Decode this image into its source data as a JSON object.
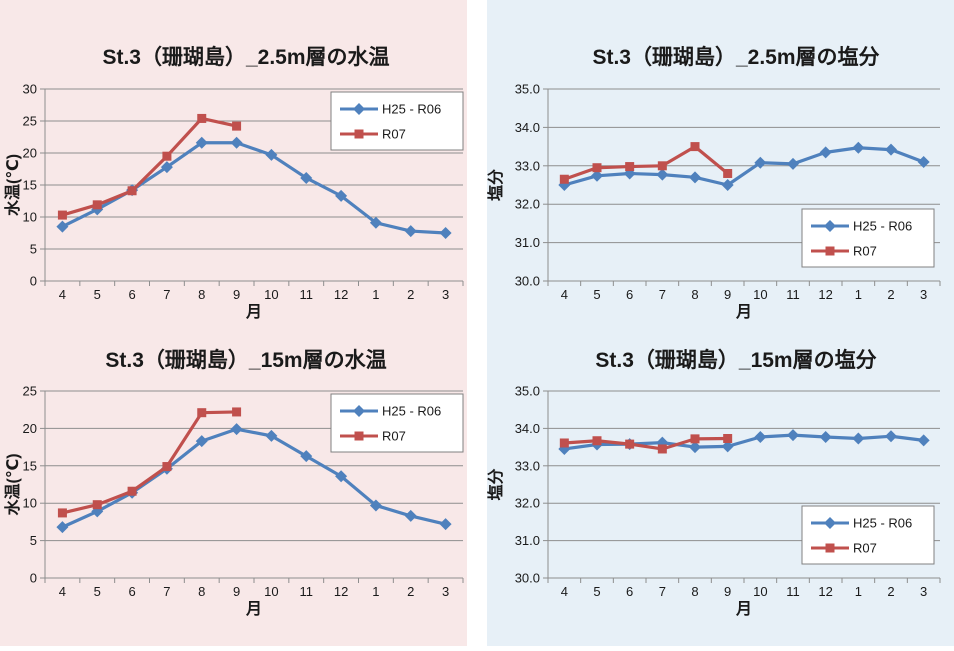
{
  "page": {
    "panels": {
      "left": {
        "name": "water-temperature-panel",
        "background": "#F8E8E8"
      },
      "right": {
        "name": "salinity-panel",
        "background": "#E7F0F7"
      }
    },
    "gridline_color": "#8E8E8E",
    "axis_color": "#8E8E8E",
    "legend_border_color": "#808080",
    "legend_background": "#FFFFFF"
  },
  "chart_data": [
    {
      "id": "temp_2_5m",
      "type": "line",
      "title": "St.3（珊瑚島）_2.5m層の水温",
      "xlabel": "月",
      "ylabel": "水温(℃)",
      "categories": [
        "4",
        "5",
        "6",
        "7",
        "8",
        "9",
        "10",
        "11",
        "12",
        "1",
        "2",
        "3"
      ],
      "ylim": [
        0,
        30
      ],
      "ytick_step": 5,
      "ytick_decimals": 0,
      "grid": true,
      "legend_position": "top-right",
      "series": [
        {
          "name": "H25 - R06",
          "color": "#4F81BD",
          "marker": "diamond",
          "values": [
            8.5,
            11.2,
            14.2,
            17.8,
            21.6,
            21.6,
            19.7,
            16.1,
            13.3,
            9.1,
            7.8,
            7.5
          ]
        },
        {
          "name": "R07",
          "color": "#C0504D",
          "marker": "square",
          "values": [
            10.3,
            11.9,
            14.1,
            19.5,
            25.4,
            24.2,
            null,
            null,
            null,
            null,
            null,
            null
          ]
        }
      ]
    },
    {
      "id": "sal_2_5m",
      "type": "line",
      "title": "St.3（珊瑚島）_2.5m層の塩分",
      "xlabel": "月",
      "ylabel": "塩分",
      "categories": [
        "4",
        "5",
        "6",
        "7",
        "8",
        "9",
        "10",
        "11",
        "12",
        "1",
        "2",
        "3"
      ],
      "ylim": [
        30.0,
        35.0
      ],
      "ytick_step": 1.0,
      "ytick_decimals": 1,
      "grid": true,
      "legend_position": "bottom-right",
      "series": [
        {
          "name": "H25 - R06",
          "color": "#4F81BD",
          "marker": "diamond",
          "values": [
            32.5,
            32.74,
            32.8,
            32.77,
            32.7,
            32.5,
            33.08,
            33.05,
            33.35,
            33.47,
            33.42,
            33.1
          ]
        },
        {
          "name": "R07",
          "color": "#C0504D",
          "marker": "square",
          "values": [
            32.65,
            32.95,
            32.98,
            33.0,
            33.5,
            32.8,
            null,
            null,
            null,
            null,
            null,
            null
          ]
        }
      ]
    },
    {
      "id": "temp_15m",
      "type": "line",
      "title": "St.3（珊瑚島）_15m層の水温",
      "xlabel": "月",
      "ylabel": "水温(℃)",
      "categories": [
        "4",
        "5",
        "6",
        "7",
        "8",
        "9",
        "10",
        "11",
        "12",
        "1",
        "2",
        "3"
      ],
      "ylim": [
        0,
        25
      ],
      "ytick_step": 5,
      "ytick_decimals": 0,
      "grid": true,
      "legend_position": "top-right",
      "series": [
        {
          "name": "H25 - R06",
          "color": "#4F81BD",
          "marker": "diamond",
          "values": [
            6.8,
            8.9,
            11.4,
            14.6,
            18.3,
            19.9,
            19.0,
            16.3,
            13.6,
            9.7,
            8.3,
            7.2
          ]
        },
        {
          "name": "R07",
          "color": "#C0504D",
          "marker": "square",
          "values": [
            8.7,
            9.8,
            11.6,
            14.9,
            22.1,
            22.2,
            null,
            null,
            null,
            null,
            null,
            null
          ]
        }
      ]
    },
    {
      "id": "sal_15m",
      "type": "line",
      "title": "St.3（珊瑚島）_15m層の塩分",
      "xlabel": "月",
      "ylabel": "塩分",
      "categories": [
        "4",
        "5",
        "6",
        "7",
        "8",
        "9",
        "10",
        "11",
        "12",
        "1",
        "2",
        "3"
      ],
      "ylim": [
        30.0,
        35.0
      ],
      "ytick_step": 1.0,
      "ytick_decimals": 1,
      "grid": true,
      "legend_position": "bottom-right",
      "series": [
        {
          "name": "H25 - R06",
          "color": "#4F81BD",
          "marker": "diamond",
          "values": [
            33.45,
            33.57,
            33.58,
            33.62,
            33.5,
            33.52,
            33.77,
            33.82,
            33.77,
            33.73,
            33.79,
            33.68
          ]
        },
        {
          "name": "R07",
          "color": "#C0504D",
          "marker": "square",
          "values": [
            33.61,
            33.67,
            33.58,
            33.45,
            33.72,
            33.73,
            null,
            null,
            null,
            null,
            null,
            null
          ]
        }
      ]
    }
  ]
}
